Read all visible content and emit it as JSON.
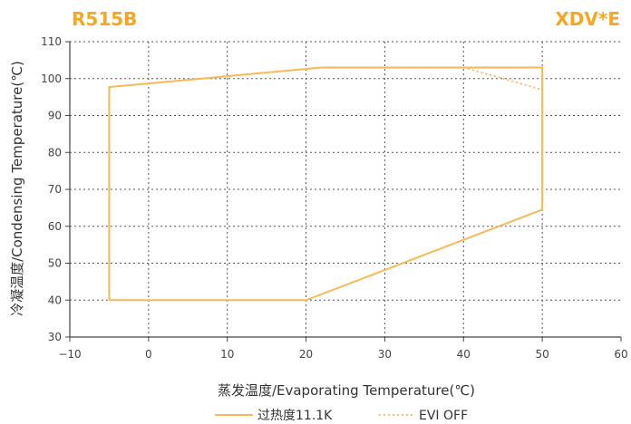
{
  "chart_data": {
    "type": "line",
    "title_left": "R515B",
    "title_right": "XDV*E",
    "xlabel": "蒸发温度/Evaporating Temperature(℃)",
    "ylabel": "冷凝温度/Condensing Temperature(℃)",
    "xlim": [
      -10,
      60
    ],
    "ylim": [
      30,
      110
    ],
    "xticks": [
      -10,
      0,
      10,
      20,
      30,
      40,
      50,
      60
    ],
    "yticks": [
      30,
      40,
      50,
      60,
      70,
      80,
      90,
      100,
      110
    ],
    "xtick_labels": [
      "−10",
      "0",
      "10",
      "20",
      "30",
      "40",
      "50",
      "60"
    ],
    "ytick_labels": [
      "30",
      "40",
      "50",
      "60",
      "70",
      "80",
      "90",
      "100",
      "110"
    ],
    "grid": true,
    "legend_position": "bottom-center",
    "accent_color": "#f5a623",
    "line_color": "#f7b955",
    "series": [
      {
        "name": "过热度11.1K",
        "style": "solid",
        "points": [
          [
            -5,
            40
          ],
          [
            20,
            40
          ],
          [
            50,
            64.5
          ],
          [
            50,
            103
          ],
          [
            22,
            103
          ],
          [
            -5,
            97.7
          ],
          [
            -5,
            40
          ]
        ]
      },
      {
        "name": "EVI OFF",
        "style": "dotted",
        "points": [
          [
            40,
            103
          ],
          [
            50,
            97
          ]
        ]
      }
    ]
  }
}
